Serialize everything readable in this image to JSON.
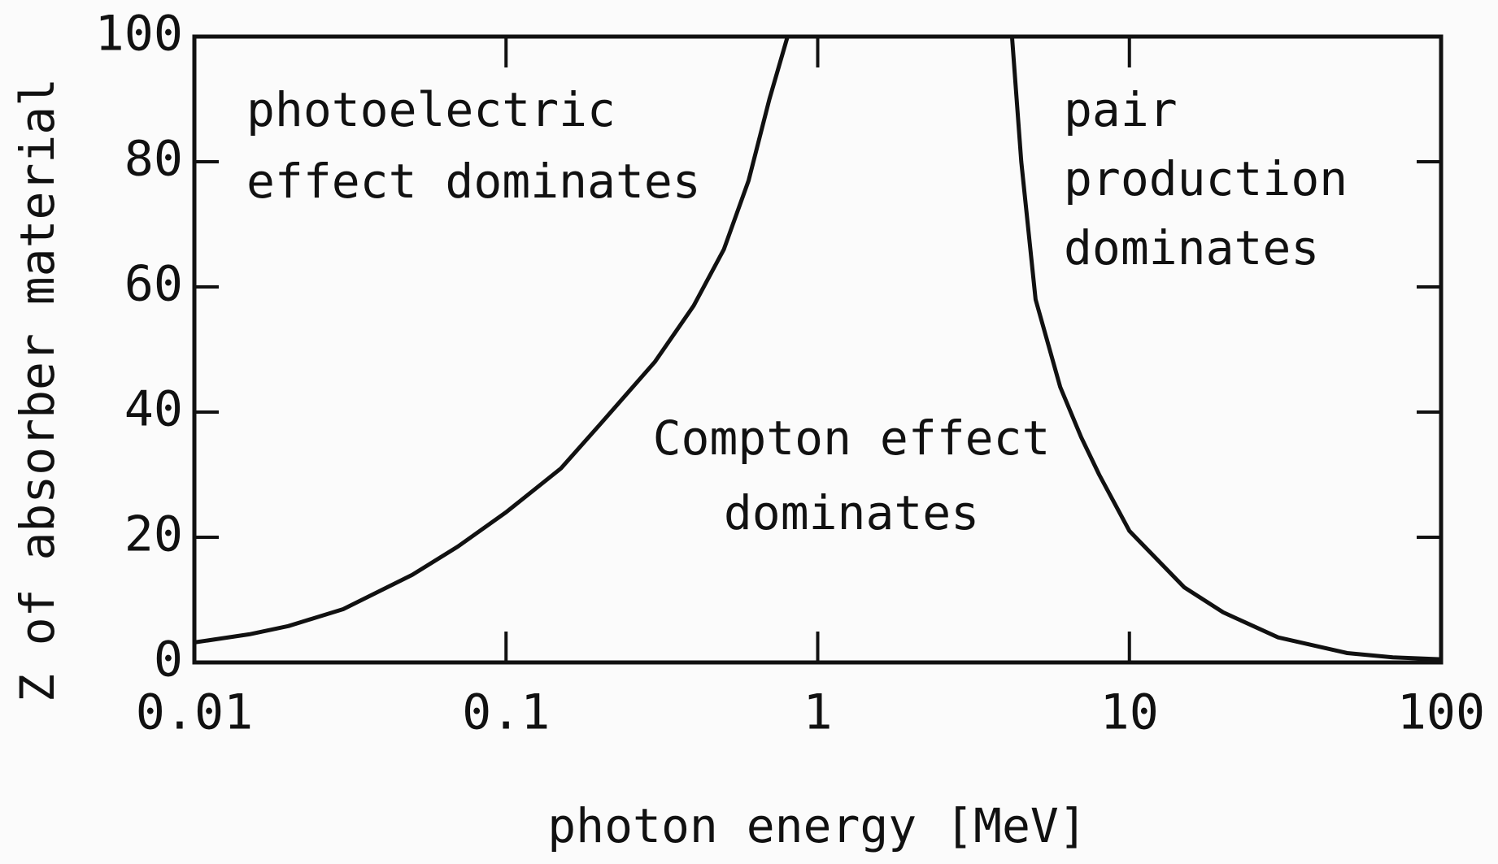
{
  "chart_data": {
    "type": "line",
    "xlabel": "photon energy [MeV]",
    "ylabel": "Z of absorber material",
    "xscale": "log",
    "xlim": [
      0.01,
      100
    ],
    "ylim": [
      0,
      100
    ],
    "xticks": [
      0.01,
      0.1,
      1,
      10,
      100
    ],
    "yticks": [
      0,
      20,
      40,
      60,
      80,
      100
    ],
    "series": [
      {
        "color": "#111111",
        "x": [
          0.01,
          0.015,
          0.02,
          0.03,
          0.05,
          0.07,
          0.1,
          0.15,
          0.2,
          0.3,
          0.4,
          0.5,
          0.6,
          0.7,
          0.8
        ],
        "values": [
          3.2,
          4.5,
          5.8,
          8.5,
          14,
          18.5,
          24,
          31,
          38,
          48,
          57,
          66,
          77,
          90,
          100
        ]
      },
      {
        "color": "#111111",
        "x": [
          4.2,
          4.5,
          5,
          6,
          7,
          8,
          10,
          15,
          20,
          30,
          50,
          70,
          100
        ],
        "values": [
          100,
          80,
          58,
          44,
          36,
          30,
          21,
          12,
          8,
          4,
          1.5,
          0.8,
          0.5
        ]
      }
    ],
    "annotations": [
      {
        "lines": [
          "photoelectric",
          "effect dominates"
        ]
      },
      {
        "lines": [
          "Compton effect",
          "dominates"
        ]
      },
      {
        "lines": [
          "pair",
          "production",
          "dominates"
        ]
      }
    ]
  }
}
